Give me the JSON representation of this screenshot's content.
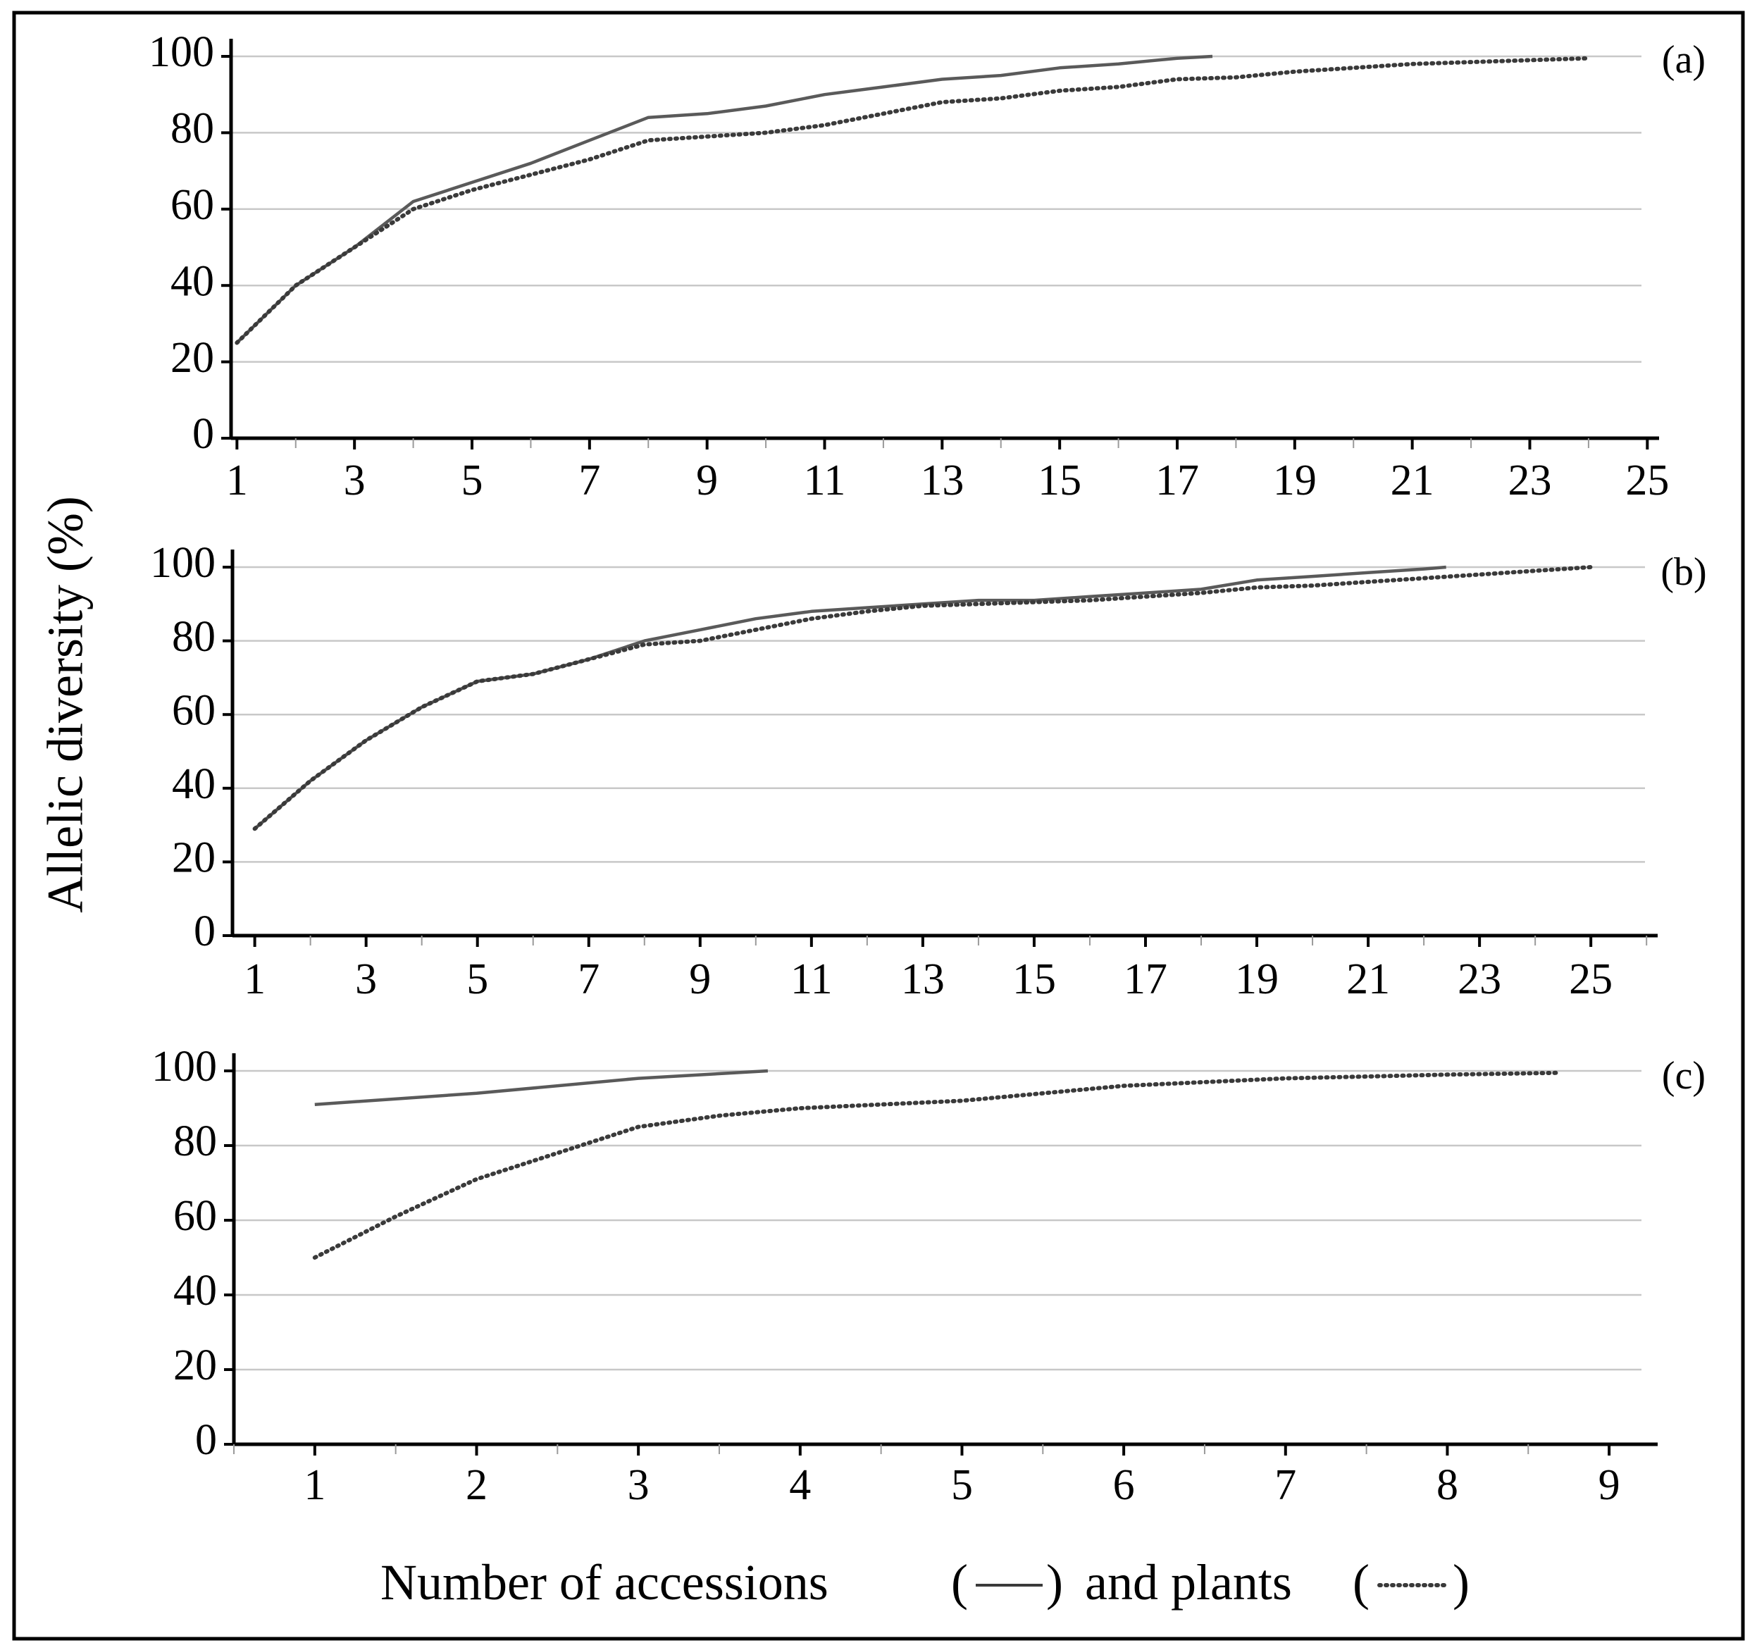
{
  "ylabel": "Allelic diversity (%)",
  "xlabel_parts": [
    "Number of accessions",
    "(",
    ")",
    "and plants",
    "(",
    ")"
  ],
  "chart_data": [
    {
      "type": "line",
      "panel_label": "(a)",
      "ylim": [
        0,
        100
      ],
      "yticks": [
        0,
        20,
        40,
        60,
        80,
        100
      ],
      "xlim": [
        0.9,
        25.2
      ],
      "xticks": [
        1,
        3,
        5,
        7,
        9,
        11,
        13,
        15,
        17,
        19,
        21,
        23,
        25
      ],
      "grid": true,
      "series": [
        {
          "style": "solid",
          "x": [
            1,
            2,
            3,
            4,
            5,
            6,
            7,
            8,
            9,
            10,
            11,
            12,
            13,
            14,
            15,
            16,
            17,
            17.6
          ],
          "y": [
            25,
            40,
            50,
            62,
            67,
            72,
            78,
            84,
            85,
            87,
            90,
            92,
            94,
            95,
            97,
            98,
            99.5,
            100
          ]
        },
        {
          "style": "dotted",
          "x": [
            1,
            2,
            3,
            4,
            5,
            6,
            7,
            8,
            9,
            10,
            11,
            12,
            13,
            14,
            15,
            16,
            17,
            18,
            19,
            20,
            21,
            22,
            23,
            24
          ],
          "y": [
            25,
            40,
            50,
            60,
            65,
            69,
            73,
            78,
            79,
            80,
            82,
            85,
            88,
            89,
            91,
            92,
            94,
            94.5,
            96,
            97,
            98,
            98.5,
            99,
            99.5
          ]
        }
      ]
    },
    {
      "type": "line",
      "panel_label": "(b)",
      "ylim": [
        0,
        100
      ],
      "yticks": [
        0,
        20,
        40,
        60,
        80,
        100
      ],
      "xlim": [
        0.6,
        26.2
      ],
      "xticks": [
        1,
        3,
        5,
        7,
        9,
        11,
        13,
        15,
        17,
        19,
        21,
        23,
        25
      ],
      "grid": true,
      "series": [
        {
          "style": "solid",
          "x": [
            1,
            2,
            3,
            4,
            5,
            6,
            7,
            8,
            9,
            10,
            11,
            12,
            13,
            14,
            15,
            16,
            17,
            18,
            19,
            20,
            21,
            22,
            22.4
          ],
          "y": [
            29,
            42,
            53,
            62,
            69,
            71,
            75,
            80,
            83,
            86,
            88,
            89,
            90,
            91,
            91,
            92,
            93,
            94,
            96.5,
            97.5,
            98.5,
            99.5,
            100
          ]
        },
        {
          "style": "dotted",
          "x": [
            1,
            2,
            3,
            4,
            5,
            6,
            7,
            8,
            9,
            10,
            11,
            12,
            13,
            14,
            15,
            16,
            17,
            18,
            19,
            20,
            21,
            22,
            23,
            24,
            25
          ],
          "y": [
            29,
            42,
            53,
            62,
            69,
            71,
            75,
            79,
            80,
            83,
            86,
            88,
            89.5,
            90,
            90.5,
            91,
            92,
            93,
            94.5,
            95,
            96,
            97,
            98,
            99,
            100
          ]
        }
      ]
    },
    {
      "type": "line",
      "panel_label": "(c)",
      "ylim": [
        0,
        100
      ],
      "yticks": [
        0,
        20,
        40,
        60,
        80,
        100
      ],
      "xlim": [
        0.5,
        9.3
      ],
      "xticks": [
        1,
        2,
        3,
        4,
        5,
        6,
        7,
        8,
        9
      ],
      "grid": true,
      "series": [
        {
          "style": "solid",
          "x": [
            1,
            2,
            3,
            3.8
          ],
          "y": [
            91,
            94,
            98,
            100
          ]
        },
        {
          "style": "dotted",
          "x": [
            1,
            1.5,
            2,
            2.5,
            3,
            3.5,
            4,
            4.5,
            5,
            5.5,
            6,
            6.5,
            7,
            7.5,
            8,
            8.7
          ],
          "y": [
            50,
            61,
            71,
            78,
            85,
            88,
            90,
            91,
            92,
            94,
            96,
            97,
            98,
            98.5,
            99,
            99.5
          ]
        }
      ]
    }
  ]
}
